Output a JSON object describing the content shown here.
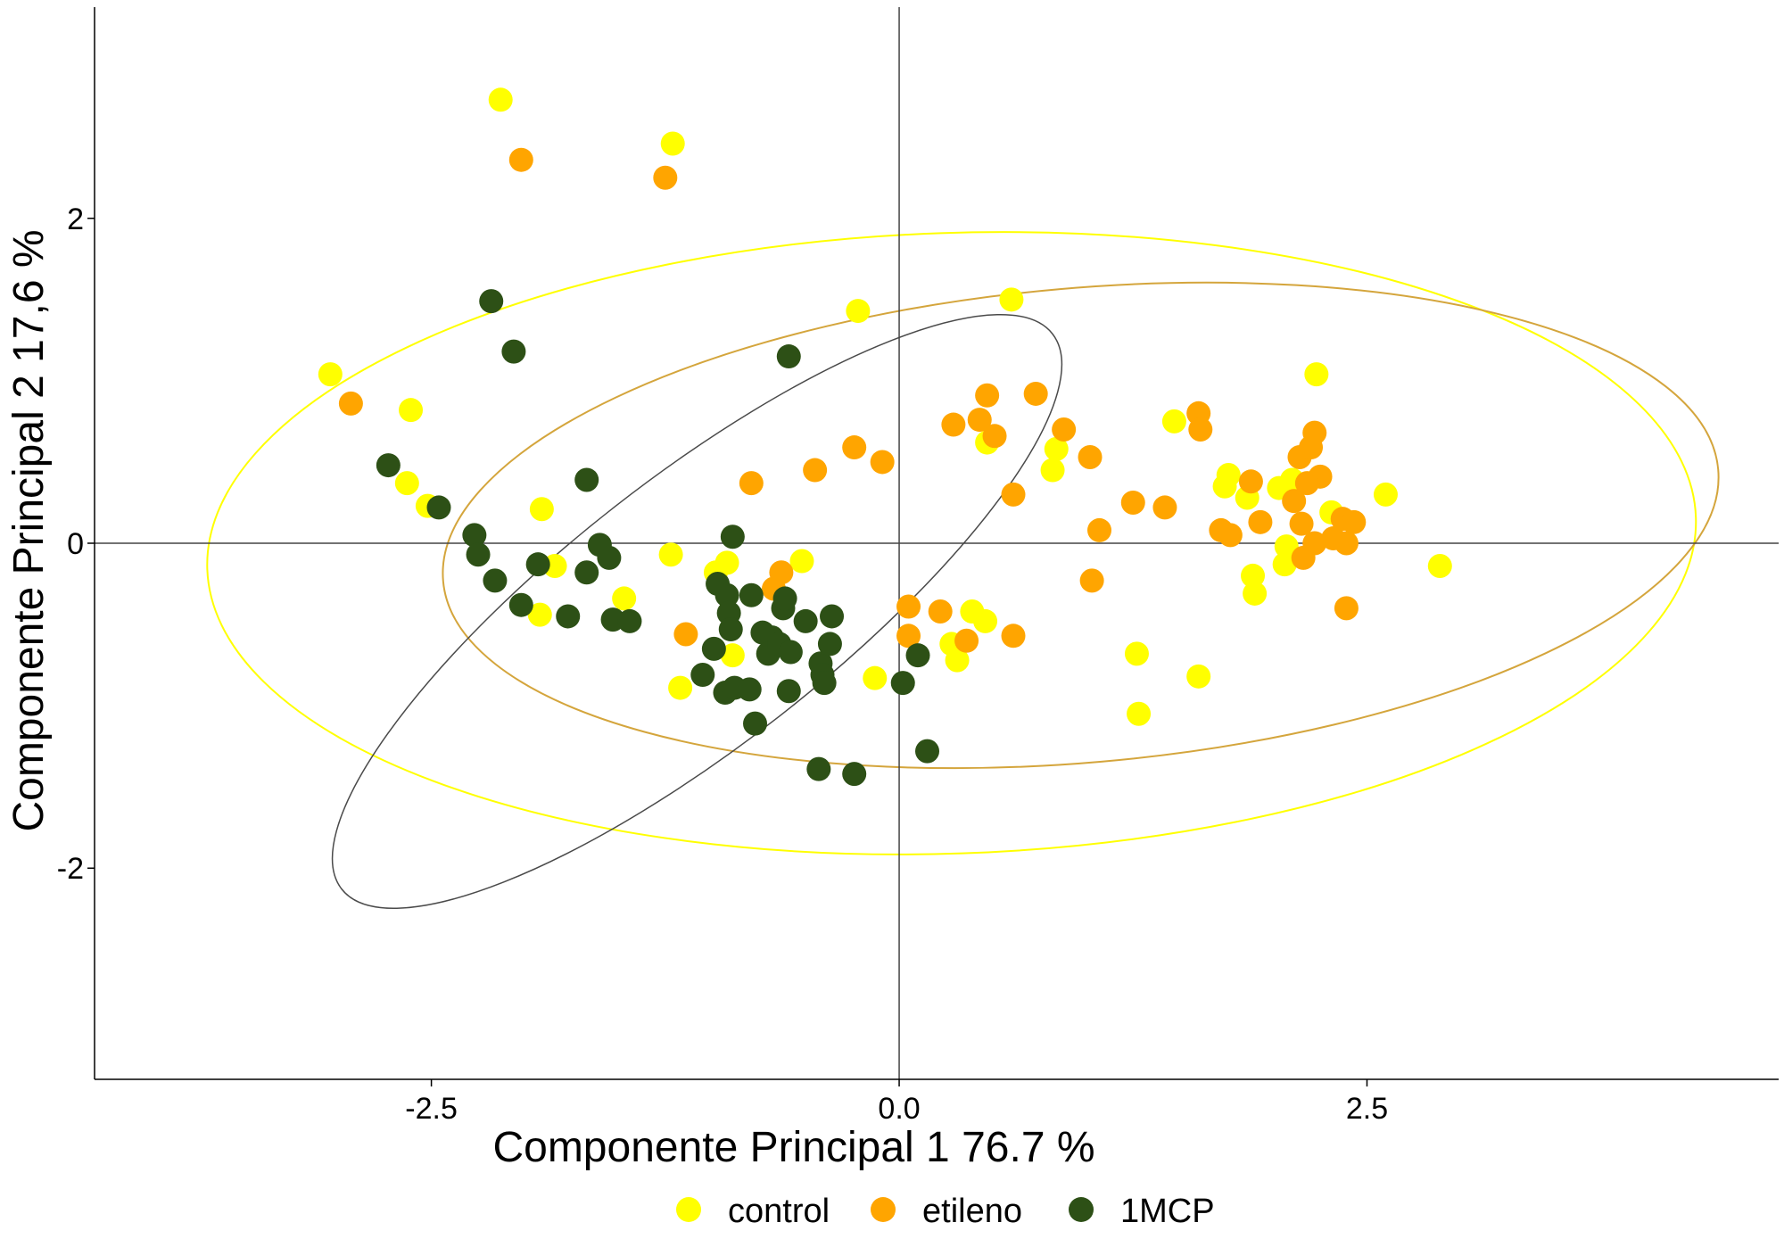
{
  "chart_data": {
    "type": "scatter",
    "title": "",
    "xlabel": "Componente Principal 1 76.7 %",
    "ylabel": "Componente Principal 2 17,6 %",
    "xlim": [
      -4.3,
      4.7
    ],
    "ylim": [
      -3.3,
      3.3
    ],
    "x_ticks": [
      -2.5,
      0.0,
      2.5
    ],
    "x_tick_labels": [
      "-2.5",
      "0.0",
      "2.5"
    ],
    "y_ticks": [
      -2,
      0,
      2
    ],
    "y_tick_labels": [
      "-2",
      "0",
      "2"
    ],
    "reference_lines": {
      "x": 0,
      "y": 0
    },
    "grid": false,
    "legend_position": "bottom",
    "series": [
      {
        "name": "control",
        "color": "#FFFF00",
        "points": [
          [
            -2.13,
            2.73
          ],
          [
            -1.21,
            2.46
          ],
          [
            -3.04,
            1.04
          ],
          [
            -2.61,
            0.82
          ],
          [
            -2.63,
            0.37
          ],
          [
            -2.52,
            0.23
          ],
          [
            -1.91,
            0.21
          ],
          [
            -1.84,
            -0.14
          ],
          [
            -1.92,
            -0.44
          ],
          [
            -1.47,
            -0.34
          ],
          [
            -1.22,
            -0.07
          ],
          [
            -1.17,
            -0.89
          ],
          [
            -0.98,
            -0.18
          ],
          [
            -0.92,
            -0.12
          ],
          [
            -0.89,
            -0.69
          ],
          [
            -0.52,
            -0.11
          ],
          [
            -0.66,
            -0.63
          ],
          [
            -0.22,
            1.43
          ],
          [
            -0.13,
            -0.83
          ],
          [
            0.39,
            -0.42
          ],
          [
            0.46,
            -0.48
          ],
          [
            0.28,
            -0.62
          ],
          [
            0.31,
            -0.72
          ],
          [
            0.47,
            0.62
          ],
          [
            0.6,
            1.5
          ],
          [
            0.84,
            0.58
          ],
          [
            0.82,
            0.45
          ],
          [
            1.27,
            -0.68
          ],
          [
            1.28,
            -1.05
          ],
          [
            1.47,
            0.75
          ],
          [
            1.6,
            -0.82
          ],
          [
            1.76,
            0.42
          ],
          [
            1.74,
            0.35
          ],
          [
            1.86,
            0.28
          ],
          [
            2.03,
            0.34
          ],
          [
            2.1,
            0.39
          ],
          [
            1.89,
            -0.2
          ],
          [
            1.9,
            -0.31
          ],
          [
            2.07,
            -0.02
          ],
          [
            2.06,
            -0.13
          ],
          [
            2.23,
            1.04
          ],
          [
            2.31,
            0.19
          ],
          [
            2.6,
            0.3
          ],
          [
            2.89,
            -0.14
          ]
        ]
      },
      {
        "name": "etileno",
        "color": "#FFA500",
        "points": [
          [
            -2.02,
            2.36
          ],
          [
            -1.25,
            2.25
          ],
          [
            -2.93,
            0.86
          ],
          [
            -1.14,
            -0.56
          ],
          [
            -0.79,
            0.37
          ],
          [
            -0.67,
            -0.28
          ],
          [
            -0.63,
            -0.18
          ],
          [
            -0.45,
            0.45
          ],
          [
            -0.24,
            0.59
          ],
          [
            -0.09,
            0.5
          ],
          [
            0.05,
            -0.39
          ],
          [
            0.05,
            -0.57
          ],
          [
            0.22,
            -0.42
          ],
          [
            0.29,
            0.73
          ],
          [
            0.36,
            -0.6
          ],
          [
            0.43,
            0.76
          ],
          [
            0.47,
            0.91
          ],
          [
            0.51,
            0.66
          ],
          [
            0.61,
            0.3
          ],
          [
            0.61,
            -0.57
          ],
          [
            0.73,
            0.92
          ],
          [
            0.88,
            0.7
          ],
          [
            1.02,
            0.53
          ],
          [
            1.03,
            -0.23
          ],
          [
            1.07,
            0.08
          ],
          [
            1.25,
            0.25
          ],
          [
            1.42,
            0.22
          ],
          [
            1.6,
            0.8
          ],
          [
            1.61,
            0.7
          ],
          [
            1.72,
            0.08
          ],
          [
            1.77,
            0.05
          ],
          [
            1.88,
            0.38
          ],
          [
            1.93,
            0.13
          ],
          [
            2.11,
            0.26
          ],
          [
            2.14,
            0.53
          ],
          [
            2.15,
            0.12
          ],
          [
            2.16,
            -0.09
          ],
          [
            2.2,
            0.59
          ],
          [
            2.22,
            0.68
          ],
          [
            2.25,
            0.41
          ],
          [
            2.32,
            0.03
          ],
          [
            2.37,
            0.15
          ],
          [
            2.39,
            0.0
          ],
          [
            2.43,
            0.13
          ],
          [
            2.39,
            -0.4
          ],
          [
            2.18,
            0.37
          ],
          [
            2.22,
            0.0
          ]
        ]
      },
      {
        "name": "1MCP",
        "color": "#2D5016",
        "points": [
          [
            -2.18,
            1.49
          ],
          [
            -2.06,
            1.18
          ],
          [
            -2.73,
            0.48
          ],
          [
            -2.46,
            0.22
          ],
          [
            -2.27,
            0.05
          ],
          [
            -2.25,
            -0.07
          ],
          [
            -2.16,
            -0.23
          ],
          [
            -2.02,
            -0.38
          ],
          [
            -1.93,
            -0.13
          ],
          [
            -1.77,
            -0.45
          ],
          [
            -1.67,
            0.39
          ],
          [
            -1.67,
            -0.18
          ],
          [
            -1.6,
            -0.01
          ],
          [
            -1.55,
            -0.09
          ],
          [
            -1.53,
            -0.47
          ],
          [
            -1.44,
            -0.48
          ],
          [
            -1.05,
            -0.81
          ],
          [
            -0.99,
            -0.65
          ],
          [
            -0.97,
            -0.25
          ],
          [
            -0.92,
            -0.32
          ],
          [
            -0.91,
            -0.43
          ],
          [
            -0.9,
            -0.53
          ],
          [
            -0.93,
            -0.92
          ],
          [
            -0.88,
            -0.89
          ],
          [
            -0.89,
            0.04
          ],
          [
            -0.8,
            -0.9
          ],
          [
            -0.79,
            -0.32
          ],
          [
            -0.77,
            -1.11
          ],
          [
            -0.73,
            -0.55
          ],
          [
            -0.68,
            -0.58
          ],
          [
            -0.7,
            -0.68
          ],
          [
            -0.64,
            -0.62
          ],
          [
            -0.62,
            -0.4
          ],
          [
            -0.61,
            -0.34
          ],
          [
            -0.58,
            -0.67
          ],
          [
            -0.59,
            -0.91
          ],
          [
            -0.59,
            1.15
          ],
          [
            -0.5,
            -0.48
          ],
          [
            -0.42,
            -0.74
          ],
          [
            -0.41,
            -0.81
          ],
          [
            -0.4,
            -0.86
          ],
          [
            -0.37,
            -0.62
          ],
          [
            -0.36,
            -0.45
          ],
          [
            -0.43,
            -1.39
          ],
          [
            -0.24,
            -1.42
          ],
          [
            0.02,
            -0.86
          ],
          [
            0.1,
            -0.69
          ],
          [
            0.15,
            -1.28
          ]
        ]
      }
    ],
    "ellipses": [
      {
        "series": "control",
        "color": "#FFFF00",
        "center": [
          0.28,
          0.0
        ],
        "rx": 3.98,
        "ry": 1.91,
        "angle_deg": -2
      },
      {
        "series": "etileno",
        "color": "#D4A53C",
        "center": [
          0.97,
          0.11
        ],
        "rx": 3.42,
        "ry": 1.46,
        "angle_deg": -5
      },
      {
        "series": "1MCP",
        "color": "#4A4A4A",
        "center": [
          -1.08,
          -0.42
        ],
        "rx": 2.41,
        "ry": 0.82,
        "angle_deg": -38
      }
    ]
  }
}
